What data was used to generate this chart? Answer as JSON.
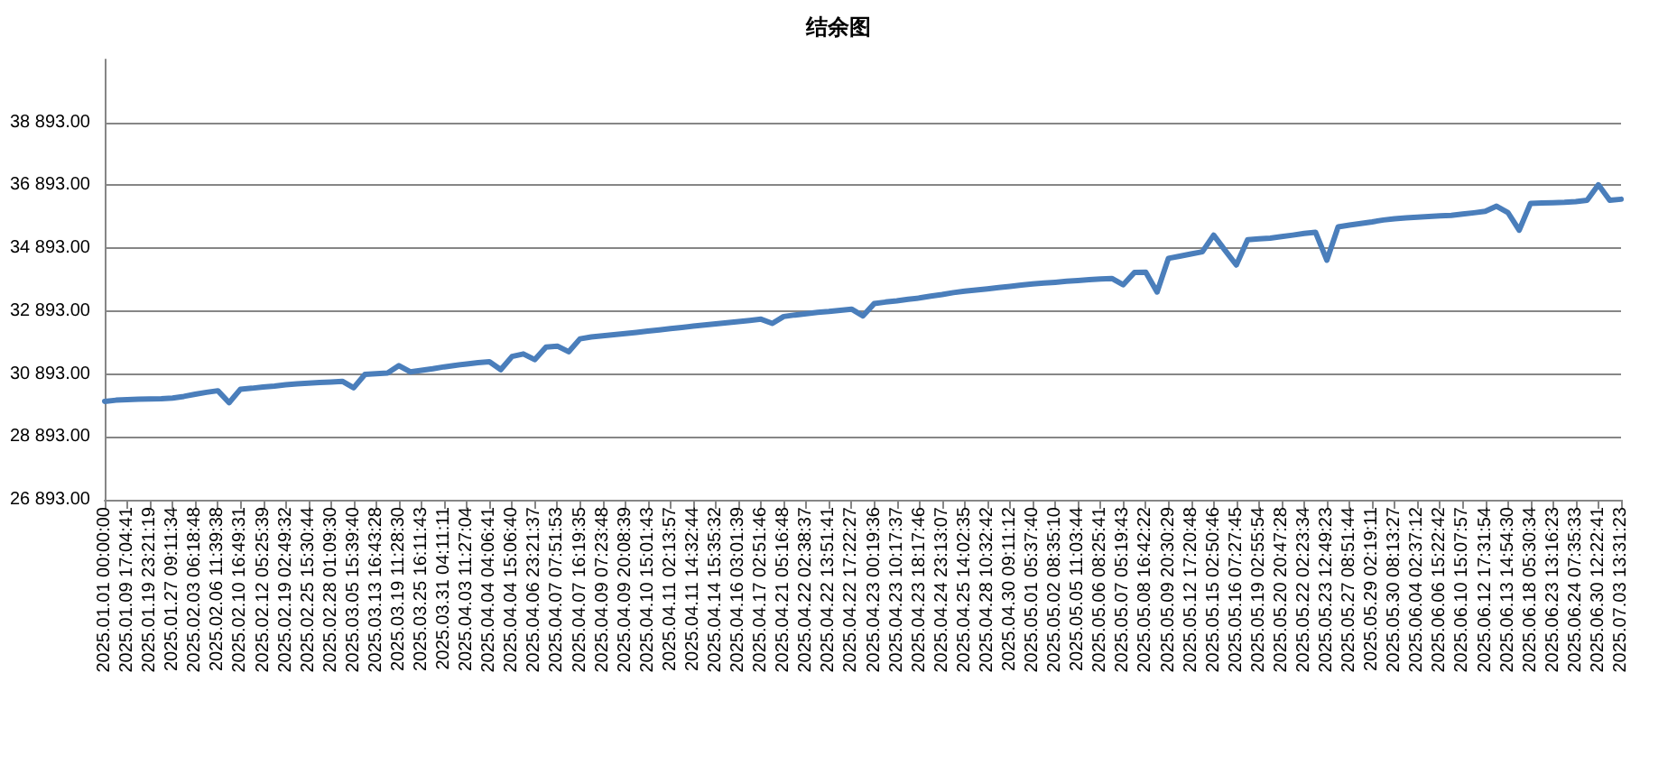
{
  "chart_data": {
    "type": "line",
    "title": "结余图",
    "categories": [
      "2025.01.01 00:00:00",
      null,
      "2025.01.09 17:04:41",
      null,
      "2025.01.19 23:21:19",
      null,
      "2025.01.27 09:11:34",
      null,
      "2025.02.03 06:18:48",
      null,
      "2025.02.06 11:39:38",
      null,
      "2025.02.10 16:49:31",
      null,
      "2025.02.12 05:25:39",
      null,
      "2025.02.19 02:49:32",
      null,
      "2025.02.25 15:30:44",
      null,
      "2025.02.28 01:09:30",
      null,
      "2025.03.05 15:39:40",
      null,
      "2025.03.13 16:43:28",
      null,
      "2025.03.19 11:28:30",
      null,
      "2025.03.25 16:11:43",
      null,
      "2025.03.31 04:11:11",
      null,
      "2025.04.03 11:27:04",
      null,
      "2025.04.04 04:06:41",
      null,
      "2025.04.04 15:06:40",
      null,
      "2025.04.06 23:21:37",
      null,
      "2025.04.07 07:51:53",
      null,
      "2025.04.07 16:19:35",
      null,
      "2025.04.09 07:23:48",
      null,
      "2025.04.09 20:08:39",
      null,
      "2025.04.10 15:01:43",
      null,
      "2025.04.11 02:13:57",
      null,
      "2025.04.11 14:32:44",
      null,
      "2025.04.14 15:35:32",
      null,
      "2025.04.16 03:01:39",
      null,
      "2025.04.17 02:51:46",
      null,
      "2025.04.21 05:16:48",
      null,
      "2025.04.22 02:38:37",
      null,
      "2025.04.22 13:51:41",
      null,
      "2025.04.22 17:22:27",
      null,
      "2025.04.23 00:19:36",
      null,
      "2025.04.23 10:17:37",
      null,
      "2025.04.23 18:17:46",
      null,
      "2025.04.24 23:13:07",
      null,
      "2025.04.25 14:02:35",
      null,
      "2025.04.28 10:32:42",
      null,
      "2025.04.30 09:11:12",
      null,
      "2025.05.01 05:37:40",
      null,
      "2025.05.02 08:35:10",
      null,
      "2025.05.05 11:03:44",
      null,
      "2025.05.06 08:25:41",
      null,
      "2025.05.07 05:19:43",
      null,
      "2025.05.08 16:42:22",
      null,
      "2025.05.09 20:30:29",
      null,
      "2025.05.12 17:20:48",
      null,
      "2025.05.15 02:50:46",
      null,
      "2025.05.16 07:27:45",
      null,
      "2025.05.19 02:55:54",
      null,
      "2025.05.20 20:47:28",
      null,
      "2025.05.22 02:23:34",
      null,
      "2025.05.23 12:49:23",
      null,
      "2025.05.27 08:51:44",
      null,
      "2025.05.29 02:19:11",
      null,
      "2025.05.30 08:13:27",
      null,
      "2025.06.04 02:37:12",
      null,
      "2025.06.06 15:22:42",
      null,
      "2025.06.10 15:07:57",
      null,
      "2025.06.12 17:31:54",
      null,
      "2025.06.13 14:54:30",
      null,
      "2025.06.18 05:30:34",
      null,
      "2025.06.23 13:16:23",
      null,
      "2025.06.24 07:35:33",
      null,
      "2025.06.30 12:22:41",
      null,
      "2025.07.03 13:31:23"
    ],
    "series": [
      {
        "color": "#4a7ebb",
        "values": [
          30020,
          30060,
          30080,
          30090,
          30100,
          30105,
          30130,
          30180,
          30250,
          30310,
          30360,
          29980,
          30410,
          30440,
          30480,
          30510,
          30550,
          30580,
          30600,
          30620,
          30640,
          30660,
          30455,
          30880,
          30905,
          30925,
          31160,
          30960,
          31010,
          31060,
          31120,
          31170,
          31210,
          31255,
          31280,
          31030,
          31450,
          31530,
          31350,
          31750,
          31780,
          31600,
          32010,
          32070,
          32110,
          32145,
          32180,
          32215,
          32255,
          32295,
          32335,
          32375,
          32415,
          32450,
          32485,
          32520,
          32560,
          32595,
          32635,
          32500,
          32720,
          32770,
          32810,
          32850,
          32880,
          32920,
          32955,
          32740,
          33130,
          33180,
          33220,
          33270,
          33310,
          33370,
          33420,
          33480,
          33525,
          33560,
          33600,
          33640,
          33680,
          33720,
          33755,
          33785,
          33810,
          33840,
          33865,
          33890,
          33915,
          33930,
          33730,
          34120,
          34130,
          33500,
          34570,
          34640,
          34710,
          34780,
          35310,
          34830,
          34360,
          35160,
          35190,
          35215,
          35260,
          35310,
          35365,
          35400,
          34510,
          35570,
          35630,
          35680,
          35730,
          35790,
          35830,
          35855,
          35880,
          35900,
          35920,
          35940,
          35980,
          36020,
          36065,
          36230,
          36030,
          35465,
          36320,
          36330,
          36340,
          36350,
          36375,
          36420,
          36910,
          36420,
          36450
        ]
      }
    ],
    "ylim": [
      26893,
      40893
    ],
    "yticks": [
      {
        "value": 26893,
        "label": "26 893.00"
      },
      {
        "value": 28893,
        "label": "28 893.00"
      },
      {
        "value": 30893,
        "label": "30 893.00"
      },
      {
        "value": 32893,
        "label": "32 893.00"
      },
      {
        "value": 34893,
        "label": "34 893.00"
      },
      {
        "value": 36893,
        "label": "36 893.00"
      },
      {
        "value": 38893,
        "label": "38 893.00"
      }
    ],
    "grid": "y",
    "marker": "none",
    "line_style": "solid"
  }
}
